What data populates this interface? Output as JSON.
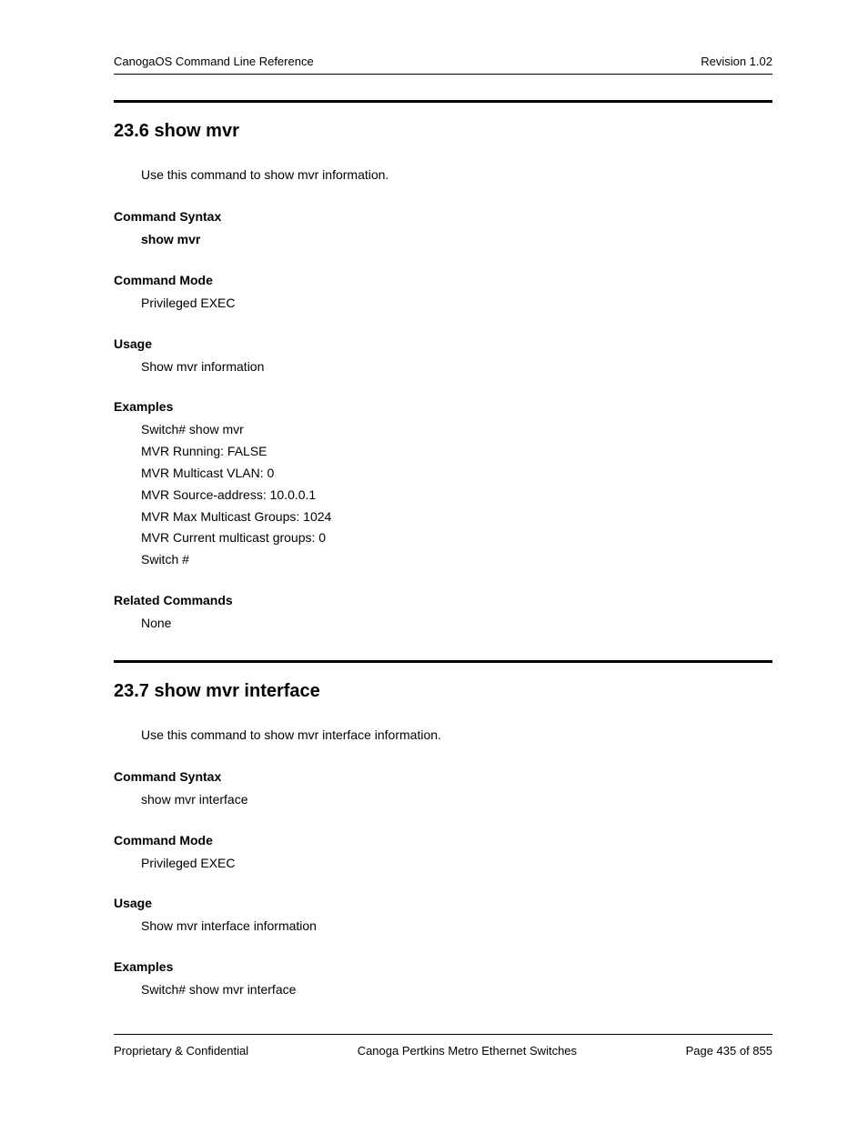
{
  "header": {
    "left": "CanogaOS Command Line Reference",
    "right": "Revision 1.02"
  },
  "sections": [
    {
      "number": "23.6",
      "title": "show mvr",
      "intro": "Use this command to show mvr information.",
      "syntax_label": "Command Syntax",
      "syntax_body": "show mvr",
      "syntax_bold": true,
      "mode_label": "Command Mode",
      "mode_body": "Privileged EXEC",
      "usage_label": "Usage",
      "usage_body": "Show mvr information",
      "examples_label": "Examples",
      "examples_lines": [
        "Switch# show mvr",
        "MVR Running: FALSE",
        "MVR Multicast VLAN: 0",
        "MVR Source-address: 10.0.0.1",
        "MVR Max Multicast Groups: 1024",
        "MVR Current multicast groups: 0",
        "Switch #"
      ],
      "related_label": "Related Commands",
      "related_body": "None"
    },
    {
      "number": "23.7",
      "title": "show mvr interface",
      "intro": "Use this command to show mvr interface information.",
      "syntax_label": "Command Syntax",
      "syntax_body": "show mvr interface",
      "syntax_bold": false,
      "mode_label": "Command Mode",
      "mode_body": "Privileged EXEC",
      "usage_label": "Usage",
      "usage_body": "Show mvr interface information",
      "examples_label": "Examples",
      "examples_lines": [
        "Switch# show mvr interface"
      ]
    }
  ],
  "footer": {
    "left": "Proprietary & Confidential",
    "center": "Canoga Pertkins Metro Ethernet Switches",
    "right": "Page 435 of 855"
  }
}
